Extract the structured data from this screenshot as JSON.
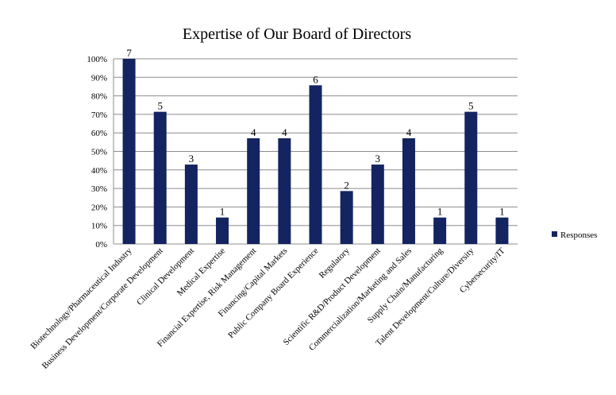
{
  "chart_data": {
    "type": "bar",
    "title": "Expertise of Our Board of Directors",
    "xlabel": "",
    "ylabel": "",
    "ylim": [
      0,
      1
    ],
    "yticks": [
      "0%",
      "10%",
      "20%",
      "30%",
      "40%",
      "50%",
      "60%",
      "70%",
      "80%",
      "90%",
      "100%"
    ],
    "grid": true,
    "legend_position": "right",
    "bar_color": "#142461",
    "categories": [
      "Biotechnology/Pharmaceutical Industry",
      "Business Development/Corporate Development",
      "Clinical Development",
      "Medical Expertise",
      "Financial Expertise, Risk Management",
      "Financing/Capital Markets",
      "Public Company Board Experience",
      "Regulatory",
      "Scientific R&D/Product Development",
      "Commercialization/Marketing and Sales",
      "Supply Chain/Manufacturing",
      "Talent Development/Culture/Diversity",
      "Cybersecurity/IT"
    ],
    "series": [
      {
        "name": "Responses",
        "values": [
          1.0,
          0.714,
          0.429,
          0.143,
          0.571,
          0.571,
          0.857,
          0.286,
          0.429,
          0.571,
          0.143,
          0.714,
          0.143
        ],
        "data_labels": [
          "7",
          "5",
          "3",
          "1",
          "4",
          "4",
          "6",
          "2",
          "3",
          "4",
          "1",
          "5",
          "1"
        ]
      }
    ]
  }
}
